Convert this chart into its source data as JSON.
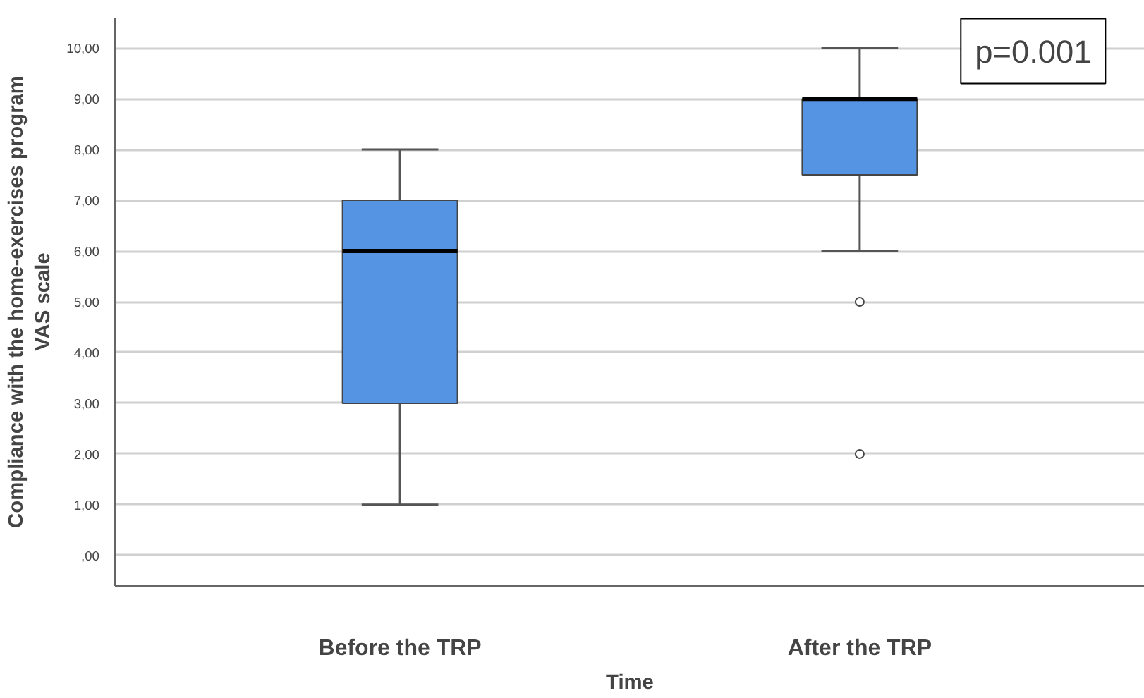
{
  "chart_data": {
    "type": "box",
    "xlabel": "Time",
    "ylabel": "Compliance with the home-exercises program\nVAS scale",
    "categories": [
      "Before the TRP",
      "After the TRP"
    ],
    "boxes": [
      {
        "low": 1,
        "q1": 3,
        "median": 6,
        "q3": 7,
        "high": 8
      },
      {
        "low": 6,
        "q1": 7.5,
        "median": 9,
        "q3": 9,
        "high": 10,
        "outliers": [
          5,
          2
        ]
      }
    ],
    "color": "#5593e3",
    "ylim": [
      -0.6,
      10.6
    ],
    "yticks": [
      {
        "value": 0,
        "label": ",00"
      },
      {
        "value": 1,
        "label": "1,00"
      },
      {
        "value": 2,
        "label": "2,00"
      },
      {
        "value": 3,
        "label": "3,00"
      },
      {
        "value": 4,
        "label": "4,00"
      },
      {
        "value": 5,
        "label": "5,00"
      },
      {
        "value": 6,
        "label": "6,00"
      },
      {
        "value": 7,
        "label": "7,00"
      },
      {
        "value": 8,
        "label": "8,00"
      },
      {
        "value": 9,
        "label": "9,00"
      },
      {
        "value": 10,
        "label": "10,00"
      }
    ],
    "grid": "y",
    "annotations": [
      "p=0.001"
    ]
  }
}
